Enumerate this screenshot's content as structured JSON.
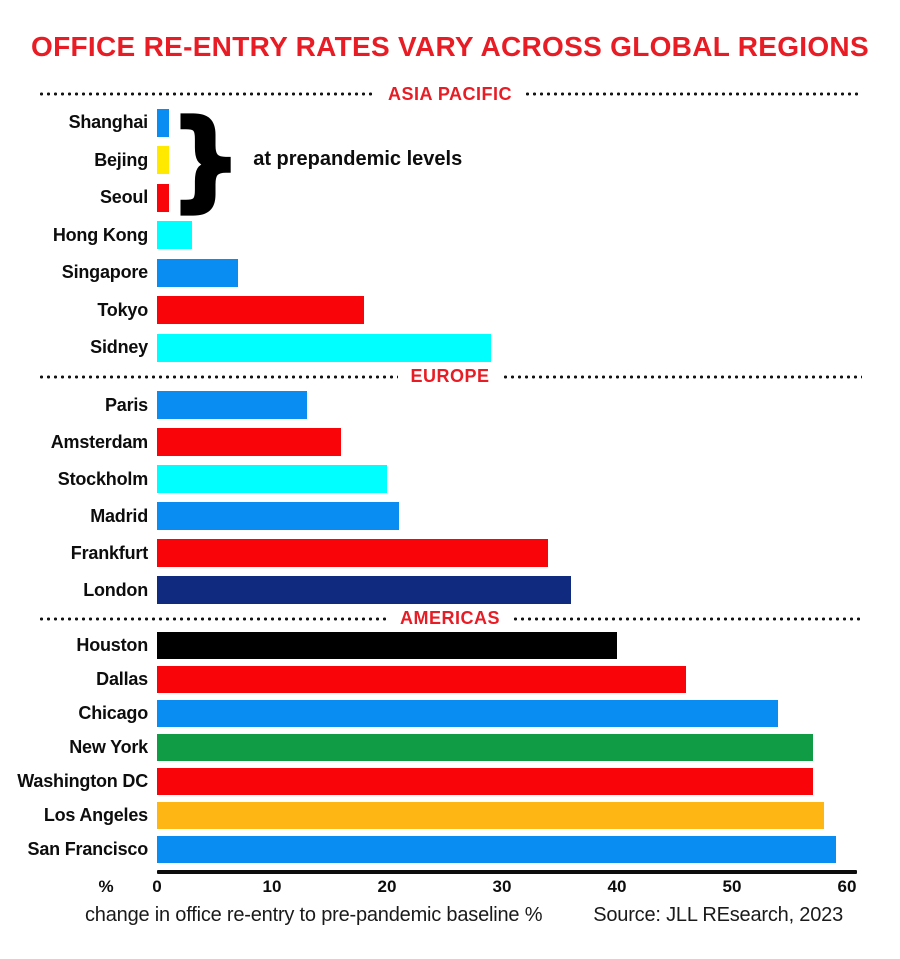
{
  "title": "OFFICE RE-ENTRY RATES VARY ACROSS GLOBAL REGIONS",
  "annotation": "at prepandemic levels",
  "caption": "change in office re-entry to pre-pandemic baseline %",
  "source": "Source: JLL REsearch, 2023",
  "axis": {
    "unit_label": "%",
    "ticks": [
      0,
      10,
      20,
      30,
      40,
      50,
      60
    ],
    "max": 60
  },
  "colors": {
    "accent_red": "#e81c24",
    "text": "#0d0d0d",
    "bar_blue": "#0a8df2",
    "bar_red": "#f90509",
    "bar_cyan": "#00ffff",
    "bar_yellow": "#ffe900",
    "bar_navy": "#102a80",
    "bar_black": "#000000",
    "bar_green": "#109c44",
    "bar_orange": "#fdb614"
  },
  "chart_data": {
    "type": "bar",
    "orientation": "horizontal",
    "title": "OFFICE RE-ENTRY RATES VARY ACROSS GLOBAL REGIONS",
    "xlabel": "change in office re-entry to pre-pandemic baseline %",
    "xlim": [
      0,
      60
    ],
    "xticks": [
      0,
      10,
      20,
      30,
      40,
      50,
      60
    ],
    "grid": false,
    "legend": false,
    "annotation": "at prepandemic levels (bracket over Shanghai, Bejing, Seoul)",
    "source": "Source: JLL REsearch, 2023",
    "sections": [
      {
        "name": "ASIA PACIFIC",
        "rows": [
          {
            "city": "Shanghai",
            "value": 1,
            "color": "#0a8df2",
            "annotated": true
          },
          {
            "city": "Bejing",
            "value": 1,
            "color": "#ffe900",
            "annotated": true
          },
          {
            "city": "Seoul",
            "value": 1,
            "color": "#f90509",
            "annotated": true
          },
          {
            "city": "Hong Kong",
            "value": 3,
            "color": "#00ffff"
          },
          {
            "city": "Singapore",
            "value": 7,
            "color": "#0a8df2"
          },
          {
            "city": "Tokyo",
            "value": 18,
            "color": "#f90509"
          },
          {
            "city": "Sidney",
            "value": 29,
            "color": "#00ffff"
          }
        ]
      },
      {
        "name": "EUROPE",
        "rows": [
          {
            "city": "Paris",
            "value": 13,
            "color": "#0a8df2"
          },
          {
            "city": "Amsterdam",
            "value": 16,
            "color": "#f90509"
          },
          {
            "city": "Stockholm",
            "value": 20,
            "color": "#00ffff"
          },
          {
            "city": "Madrid",
            "value": 21,
            "color": "#0a8df2"
          },
          {
            "city": "Frankfurt",
            "value": 34,
            "color": "#f90509"
          },
          {
            "city": "London",
            "value": 36,
            "color": "#102a80"
          }
        ]
      },
      {
        "name": "AMERICAS",
        "rows": [
          {
            "city": "Houston",
            "value": 40,
            "color": "#000000"
          },
          {
            "city": "Dallas",
            "value": 46,
            "color": "#f90509"
          },
          {
            "city": "Chicago",
            "value": 54,
            "color": "#0a8df2"
          },
          {
            "city": "New York",
            "value": 57,
            "color": "#109c44"
          },
          {
            "city": "Washington DC",
            "value": 57,
            "color": "#f90509"
          },
          {
            "city": "Los Angeles",
            "value": 58,
            "color": "#fdb614"
          },
          {
            "city": "San Francisco",
            "value": 59,
            "color": "#0a8df2"
          }
        ]
      }
    ]
  }
}
